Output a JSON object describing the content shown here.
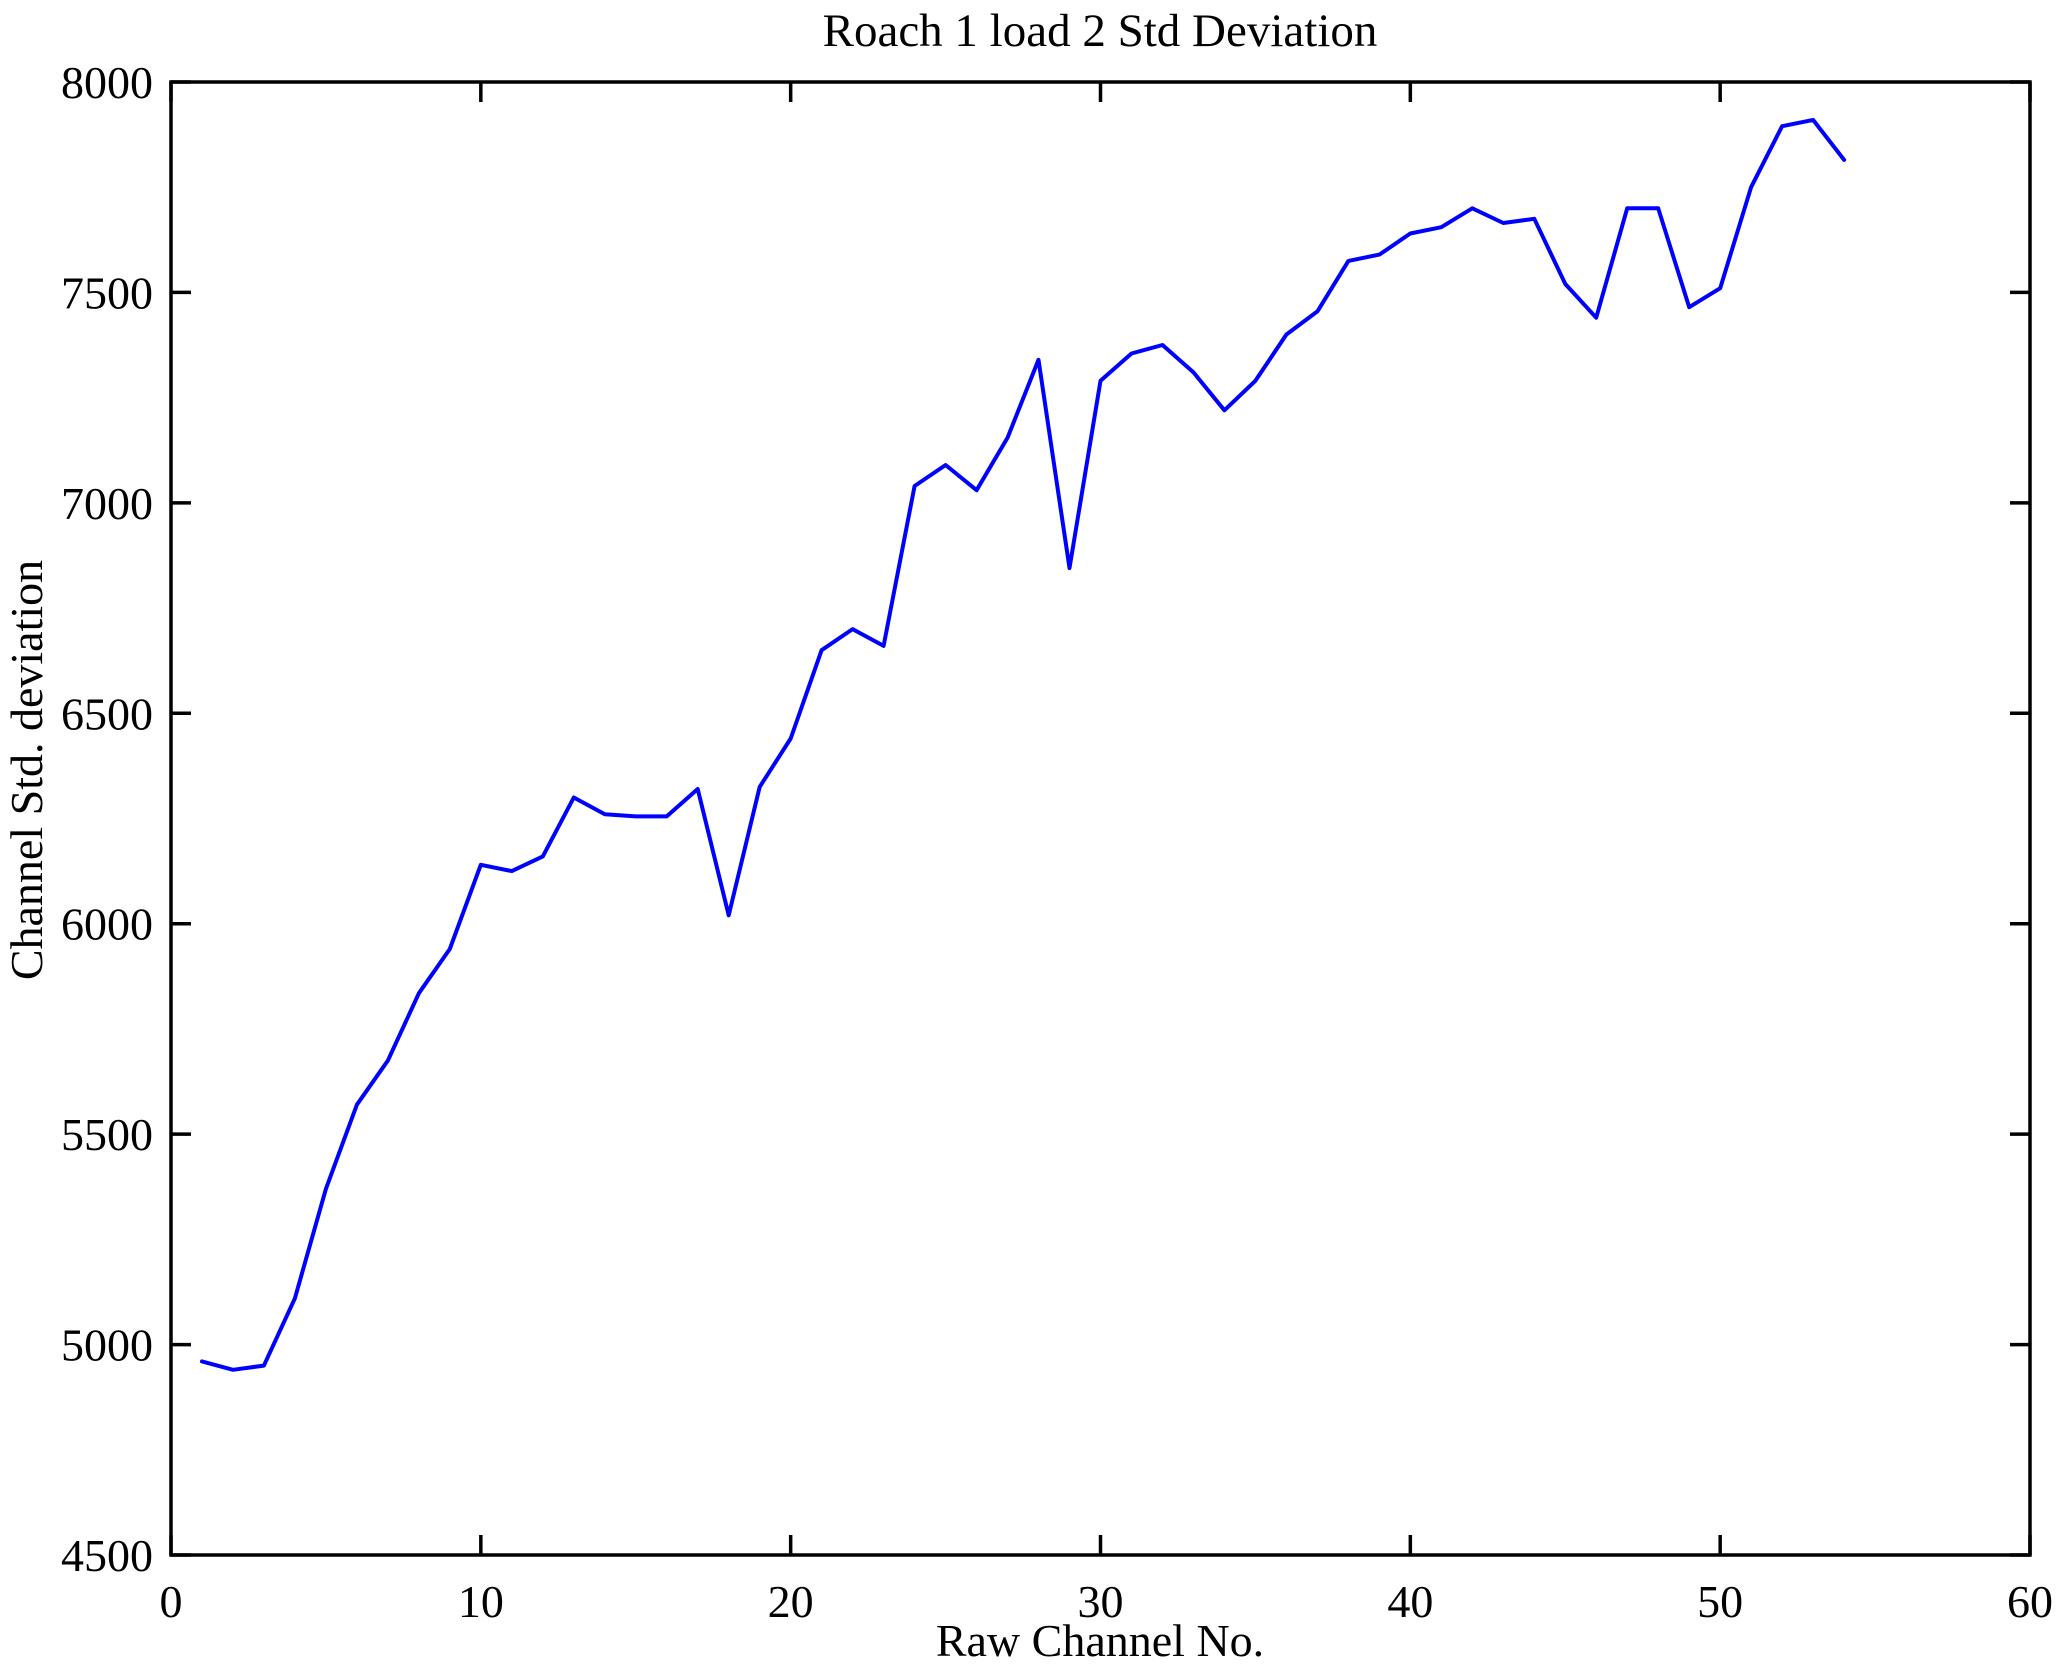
{
  "chart_data": {
    "type": "line",
    "title": "Roach 1 load 2 Std Deviation",
    "xlabel": "Raw Channel No.",
    "ylabel": "Channel Std. deviation",
    "xlim": [
      0,
      60
    ],
    "ylim": [
      4500,
      8000
    ],
    "xticks": [
      0,
      10,
      20,
      30,
      40,
      50,
      60
    ],
    "yticks": [
      4500,
      5000,
      5500,
      6000,
      6500,
      7000,
      7500,
      8000
    ],
    "grid": false,
    "legend": "none",
    "line_color": "#0000FF",
    "axis_color": "#000000",
    "background_color": "#FFFFFF",
    "x": [
      1,
      2,
      3,
      4,
      5,
      6,
      7,
      8,
      9,
      10,
      11,
      12,
      13,
      14,
      15,
      16,
      17,
      18,
      19,
      20,
      21,
      22,
      23,
      24,
      25,
      26,
      27,
      28,
      29,
      30,
      31,
      32,
      33,
      34,
      35,
      36,
      37,
      38,
      39,
      40,
      41,
      42,
      43,
      44,
      45,
      46,
      47,
      48,
      49,
      50,
      51,
      52,
      53,
      54
    ],
    "values": [
      4960,
      4940,
      4950,
      5110,
      5370,
      5570,
      5675,
      5835,
      5940,
      6140,
      6125,
      6160,
      6300,
      6260,
      6255,
      6255,
      6320,
      6020,
      6325,
      6440,
      6650,
      6700,
      6660,
      7040,
      7090,
      7030,
      7155,
      7340,
      6845,
      7290,
      7355,
      7375,
      7310,
      7220,
      7290,
      7400,
      7455,
      7575,
      7590,
      7640,
      7655,
      7700,
      7665,
      7675,
      7520,
      7440,
      7700,
      7700,
      7465,
      7510,
      7750,
      7895,
      7910,
      7815
    ]
  }
}
